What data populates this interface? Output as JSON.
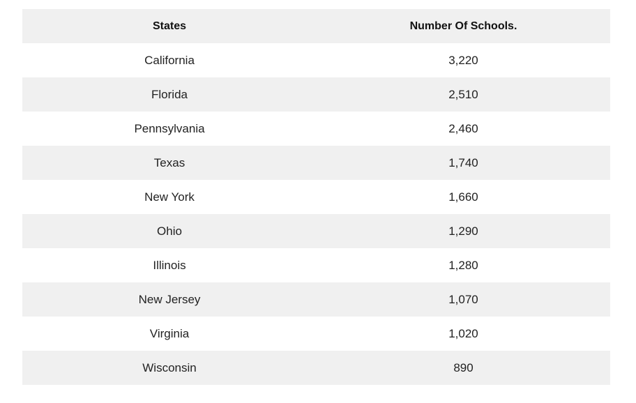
{
  "table": {
    "header": [
      "States",
      "Number Of Schools."
    ],
    "rows": [
      [
        "California",
        "3,220"
      ],
      [
        "Florida",
        "2,510"
      ],
      [
        "Pennsylvania",
        "2,460"
      ],
      [
        "Texas",
        "1,740"
      ],
      [
        "New York",
        "1,660"
      ],
      [
        "Ohio",
        "1,290"
      ],
      [
        "Illinois",
        "1,280"
      ],
      [
        "New Jersey",
        "1,070"
      ],
      [
        "Virginia",
        "1,020"
      ],
      [
        "Wisconsin",
        "890"
      ]
    ]
  }
}
